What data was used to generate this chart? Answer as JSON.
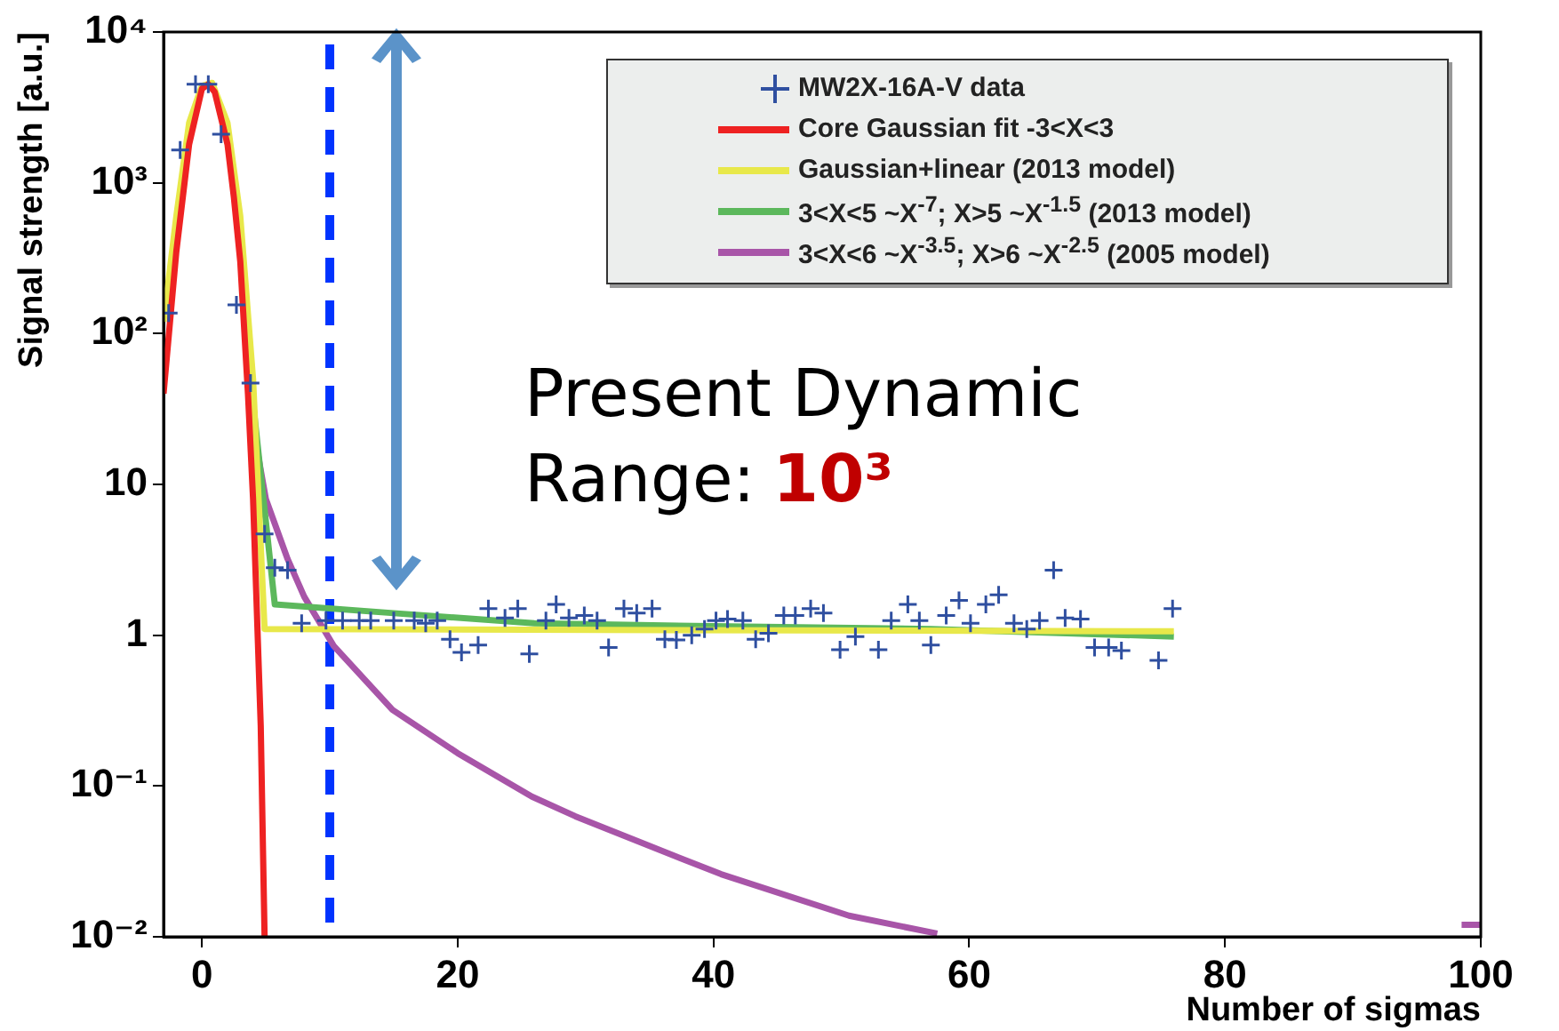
{
  "chart_data": {
    "type": "line",
    "xlabel": "Number of sigmas",
    "ylabel": "Signal strength [a.u.]",
    "xlim": [
      -3,
      100
    ],
    "xticks": [
      0,
      20,
      40,
      60,
      80,
      100
    ],
    "ylim": [
      0.01,
      10000
    ],
    "yticks": [
      {
        "value": 0.01,
        "label": "10⁻²"
      },
      {
        "value": 0.1,
        "label": "10⁻¹"
      },
      1,
      10,
      {
        "value": 100,
        "label": "10²"
      },
      {
        "value": 1000,
        "label": "10³"
      },
      {
        "value": 10000,
        "label": "10⁴"
      }
    ],
    "log": "y",
    "grid": false,
    "legend": "top right",
    "line_style": "solid",
    "ref_lines": [
      {
        "axis": "x",
        "value": 10,
        "color": "#0033ff",
        "line_style": "dashed"
      }
    ],
    "annotations": [
      "Present Dynamic Range:",
      "10³"
    ],
    "series": [
      {
        "name": "MW2X-16A-V data",
        "type": "scatter",
        "marker": "cross",
        "color": "#2f4fa0",
        "x": [
          -2.6,
          -1.7,
          -0.5,
          0.5,
          1.5,
          2.7,
          3.8,
          4.9,
          5.7,
          6.7,
          7.8,
          9.7,
          11,
          12.3,
          13.2,
          15,
          16.6,
          17.5,
          18.4,
          19.4,
          20.3,
          21.6,
          22.4,
          23.7,
          24.7,
          25.6,
          26.9,
          27.7,
          28.7,
          29.9,
          30.9,
          31.8,
          33,
          34,
          35.2,
          36.2,
          37.1,
          38.3,
          39.3,
          40.2,
          41.1,
          42.3,
          43.3,
          44.3,
          45.5,
          46.4,
          47.6,
          48.6,
          49.9,
          51.1,
          52.9,
          53.9,
          55.2,
          56.1,
          57,
          58.2,
          59.2,
          60.1,
          61.3,
          62.3,
          63.5,
          64.5,
          65.5,
          66.6,
          67.5,
          68.7,
          69.8,
          70.9,
          71.9,
          74.8,
          75.9
        ],
        "values": [
          137,
          1650,
          4500,
          4500,
          2100,
          155,
          47,
          4.7,
          2.8,
          2.7,
          1.2,
          1.25,
          1.25,
          1.25,
          1.25,
          1.25,
          1.25,
          1.2,
          1.25,
          0.94,
          0.77,
          0.86,
          1.5,
          1.3,
          1.5,
          0.75,
          1.25,
          1.6,
          1.3,
          1.35,
          1.25,
          0.83,
          1.5,
          1.4,
          1.5,
          0.94,
          0.93,
          1.0,
          1.1,
          1.25,
          1.28,
          1.25,
          0.94,
          1.03,
          1.35,
          1.35,
          1.5,
          1.4,
          0.8,
          0.98,
          0.8,
          1.25,
          1.6,
          1.25,
          0.86,
          1.35,
          1.7,
          1.2,
          1.6,
          1.85,
          1.2,
          1.1,
          1.25,
          2.7,
          1.3,
          1.28,
          0.83,
          0.83,
          0.79,
          0.68,
          1.5
        ]
      },
      {
        "name": "Core Gaussian fit -3<X<3",
        "marker": "none",
        "color": "#ee2222",
        "x": [
          -3,
          -2,
          -1,
          0,
          0.5,
          1,
          2,
          2.5,
          3,
          3.6,
          4,
          4.6,
          4.9
        ],
        "values": [
          40,
          350,
          1800,
          4200,
          4500,
          4000,
          1800,
          800,
          300,
          40,
          8,
          0.25,
          0.01
        ]
      },
      {
        "name": "Gaussian+linear   (2013 model)",
        "marker": "none",
        "color": "#e8e84a",
        "x": [
          -3,
          -2,
          -1,
          0,
          0.8,
          2,
          3,
          4,
          4.9,
          76
        ],
        "values": [
          120,
          600,
          2500,
          4400,
          4600,
          2500,
          600,
          50,
          1.1,
          1.06
        ]
      },
      {
        "name": "3<X<5 ~X$^{-7}$; X>5 ~X$^{-1.5}$ (2013 model)",
        "marker": "none",
        "color": "#5cb85c",
        "x": [
          3.8,
          5.7,
          15,
          26,
          38.5,
          57,
          76
        ],
        "values": [
          50,
          1.6,
          1.4,
          1.2,
          1.15,
          1.1,
          0.98
        ]
      },
      {
        "name": "3<X<6 ~X$^{-3.5}$; X>6 ~X$^{-2.5}$ (2005 model)",
        "marker": "none",
        "color": "#a855a8",
        "x": [
          3.8,
          5,
          6.7,
          8,
          10.3,
          14.9,
          20,
          25.8,
          29.2,
          35,
          40.6,
          50.6,
          57.5,
          80,
          98.5,
          100
        ],
        "values": [
          30,
          8,
          3.2,
          1.8,
          0.85,
          0.32,
          0.165,
          0.085,
          0.063,
          0.04,
          0.026,
          0.0138,
          0.0105,
          null,
          0.012,
          0.012
        ]
      }
    ]
  }
}
